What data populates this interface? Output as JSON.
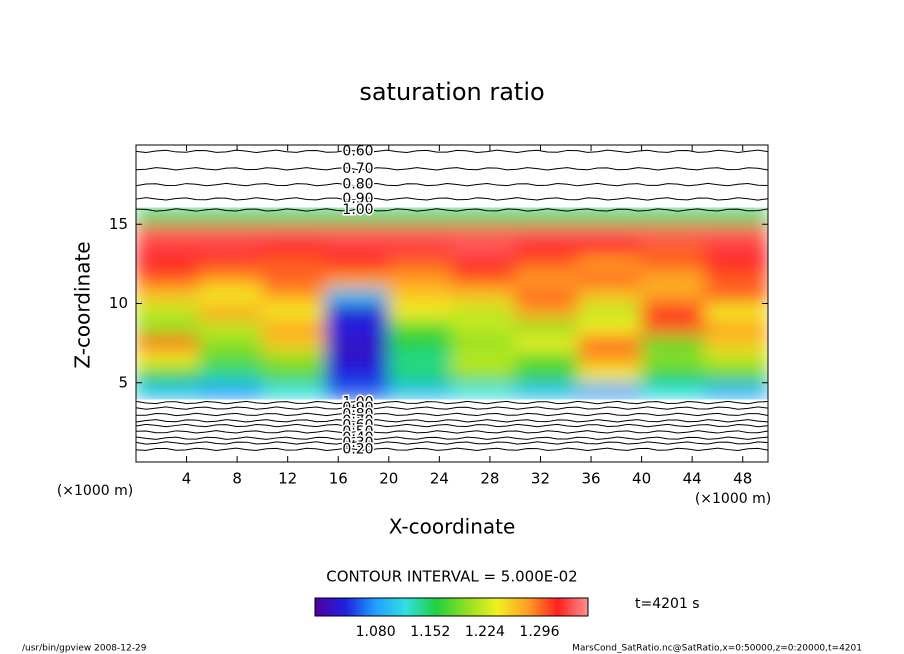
{
  "chart_data": {
    "type": "heatmap",
    "title": "saturation ratio",
    "x_label": "X-coordinate",
    "y_label": "Z-coordinate",
    "x_unit_label": "(×1000 m)",
    "y_unit_label": "(×1000 m)",
    "xlim": [
      0,
      50
    ],
    "ylim": [
      0,
      20
    ],
    "xticks": [
      4,
      8,
      12,
      16,
      20,
      24,
      28,
      32,
      36,
      40,
      44,
      48
    ],
    "yticks": [
      5,
      10,
      15
    ],
    "xbins": [
      0,
      5,
      10,
      15,
      20,
      25,
      30,
      35,
      40,
      45,
      50
    ],
    "zbins": [
      4,
      5,
      6,
      7,
      8,
      9,
      10,
      11,
      12,
      13,
      14,
      15,
      16
    ],
    "values": [
      [
        1.1,
        1.08,
        1.12,
        1.06,
        1.1,
        1.12,
        1.1,
        1.08,
        1.12,
        1.09
      ],
      [
        1.16,
        1.14,
        1.18,
        1.04,
        1.15,
        1.2,
        1.17,
        1.24,
        1.16,
        1.18
      ],
      [
        1.24,
        1.18,
        1.2,
        1.03,
        1.14,
        1.22,
        1.18,
        1.28,
        1.2,
        1.22
      ],
      [
        1.3,
        1.2,
        1.26,
        1.02,
        1.16,
        1.2,
        1.24,
        1.3,
        1.18,
        1.26
      ],
      [
        1.2,
        1.22,
        1.28,
        1.04,
        1.18,
        1.22,
        1.2,
        1.24,
        1.3,
        1.28
      ],
      [
        1.22,
        1.28,
        1.24,
        1.03,
        1.24,
        1.22,
        1.28,
        1.22,
        1.32,
        1.24
      ],
      [
        1.26,
        1.24,
        1.28,
        1.1,
        1.26,
        1.26,
        1.3,
        1.26,
        1.28,
        1.3
      ],
      [
        1.3,
        1.28,
        1.3,
        1.28,
        1.28,
        1.3,
        1.28,
        1.3,
        1.27,
        1.3
      ],
      [
        1.32,
        1.31,
        1.3,
        1.32,
        1.3,
        1.32,
        1.3,
        1.28,
        1.3,
        1.32
      ],
      [
        1.33,
        1.33,
        1.32,
        1.33,
        1.33,
        1.34,
        1.32,
        1.32,
        1.3,
        1.33
      ],
      [
        1.34,
        1.34,
        1.34,
        1.34,
        1.34,
        1.34,
        1.34,
        1.34,
        1.34,
        1.34
      ],
      [
        1.15,
        1.15,
        1.15,
        1.15,
        1.15,
        1.15,
        1.15,
        1.15,
        1.15,
        1.15
      ]
    ],
    "contours": [
      {
        "value": 0.6,
        "label": "0.60",
        "z": 19.6
      },
      {
        "value": 0.7,
        "label": "0.70",
        "z": 18.5
      },
      {
        "value": 0.8,
        "label": "0.80",
        "z": 17.5
      },
      {
        "value": 0.9,
        "label": "0.90",
        "z": 16.6
      },
      {
        "value": 1.0,
        "label": "1.00",
        "z": 15.9
      },
      {
        "value": 1.0,
        "label": "1.00",
        "z": 3.75
      },
      {
        "value": 0.9,
        "label": "0.90",
        "z": 3.4
      },
      {
        "value": 0.8,
        "label": "0.80",
        "z": 3.0
      },
      {
        "value": 0.7,
        "label": "0.70",
        "z": 2.6
      },
      {
        "value": 0.6,
        "label": "0.60",
        "z": 2.3
      },
      {
        "value": 0.5,
        "label": "0.50",
        "z": 1.9
      },
      {
        "value": 0.4,
        "label": "0.40",
        "z": 1.5
      },
      {
        "value": 0.3,
        "label": "0.30",
        "z": 1.2
      },
      {
        "value": 0.2,
        "label": "0.20",
        "z": 0.8
      }
    ],
    "contour_interval": "CONTOUR INTERVAL = 5.000E-02",
    "clim": [
      1.0,
      1.36
    ],
    "colormap": [
      "#5000a0",
      "#2020e0",
      "#20a0ff",
      "#30e0e0",
      "#20d040",
      "#90e020",
      "#f0f020",
      "#ffa020",
      "#ff2020",
      "#ff9090"
    ],
    "cticks": [
      {
        "value": 1.08,
        "label": "1.080"
      },
      {
        "value": 1.152,
        "label": "1.152"
      },
      {
        "value": 1.224,
        "label": "1.224"
      },
      {
        "value": 1.296,
        "label": "1.296"
      }
    ],
    "time_label": "t=4201 s",
    "footer_left": "/usr/bin/gpview   2008-12-29",
    "footer_right": "MarsCond_SatRatio.nc@SatRatio,x=0:50000,z=0:20000,t=4201"
  }
}
